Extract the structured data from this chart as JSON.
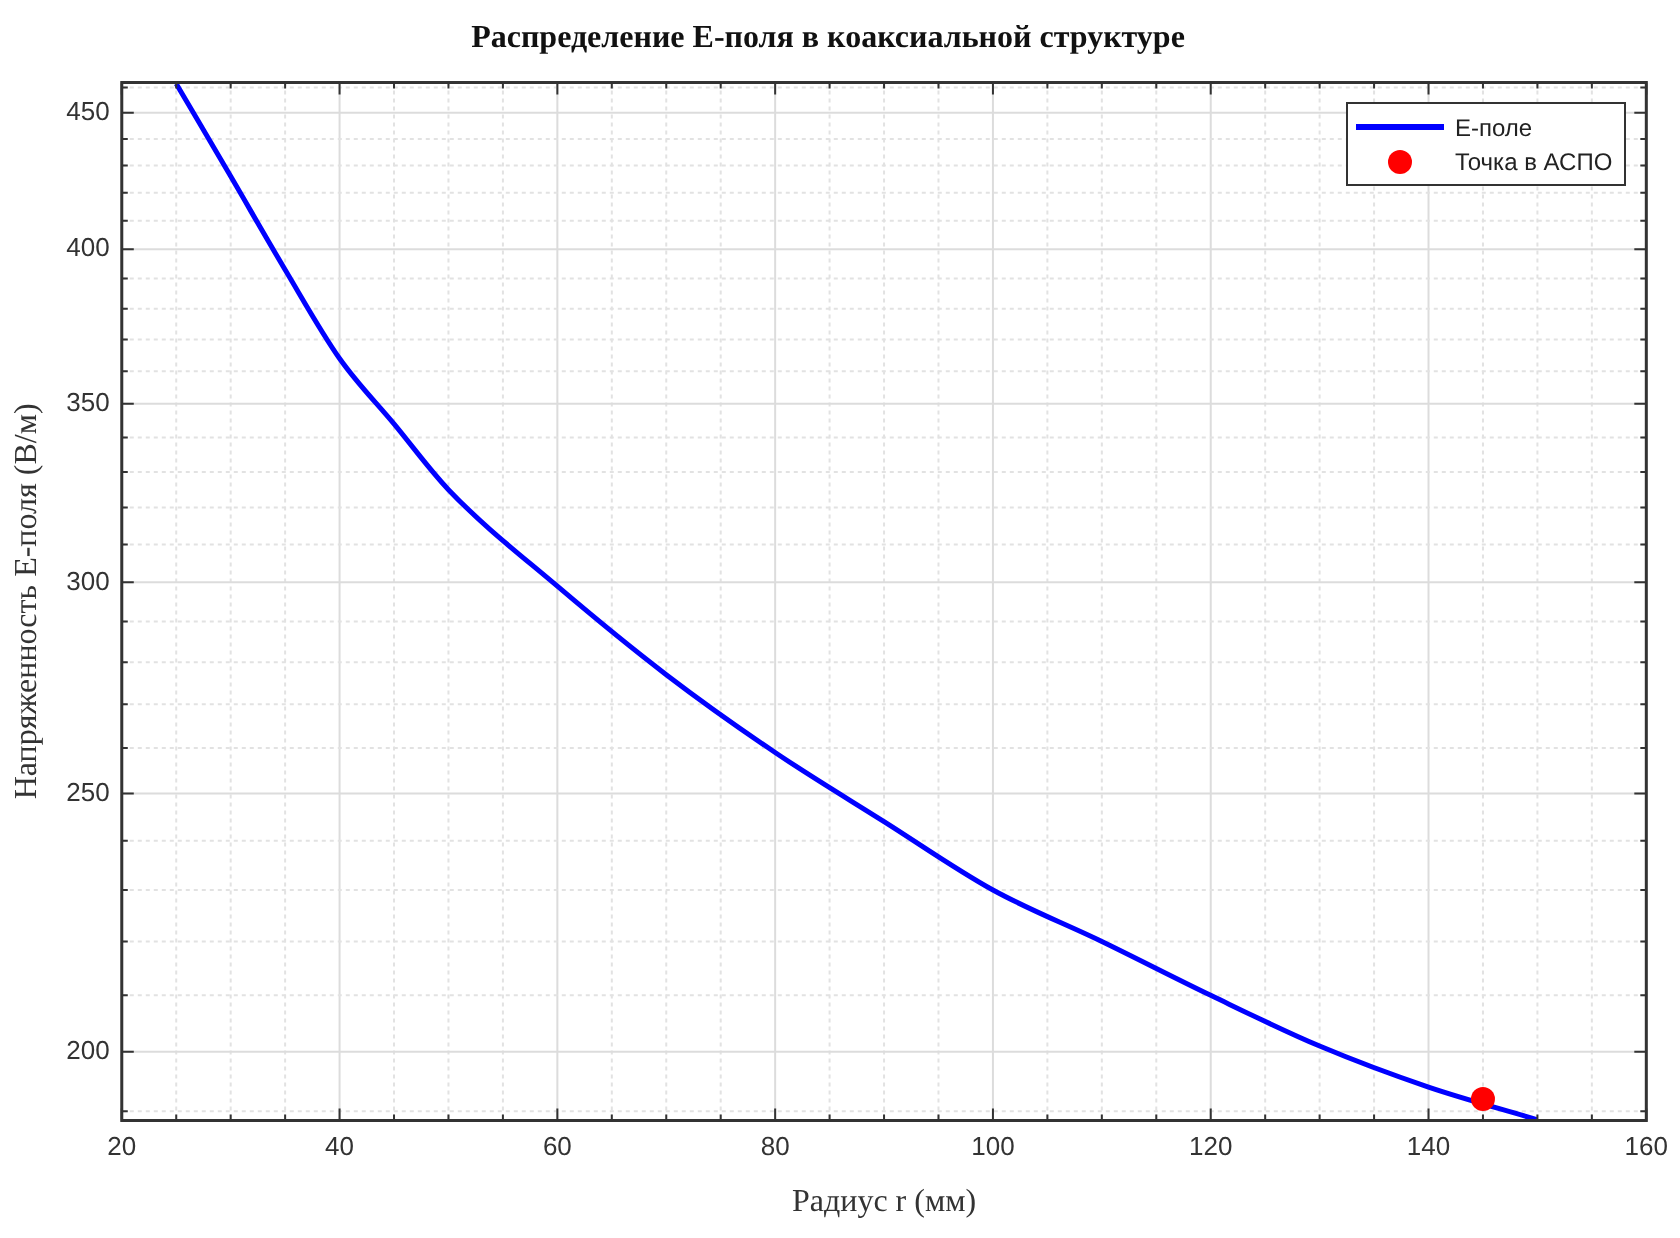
{
  "chart_data": {
    "type": "line",
    "title": "Распределение E-поля в коаксиальной структуре",
    "xlabel": "Радиус r (мм)",
    "ylabel": "Напряженность E-поля (В/м)",
    "log": "y",
    "grid": true,
    "legend": "top right",
    "xlim": [
      20,
      160
    ],
    "xticks": [
      20,
      {
        "value": 25,
        "label": null
      },
      {
        "value": 30,
        "label": null
      },
      {
        "value": 35,
        "label": null
      },
      40,
      {
        "value": 45,
        "label": null
      },
      {
        "value": 50,
        "label": null
      },
      {
        "value": 55,
        "label": null
      },
      60,
      {
        "value": 65,
        "label": null
      },
      {
        "value": 70,
        "label": null
      },
      {
        "value": 75,
        "label": null
      },
      80,
      {
        "value": 85,
        "label": null
      },
      {
        "value": 90,
        "label": null
      },
      {
        "value": 95,
        "label": null
      },
      100,
      {
        "value": 105,
        "label": null
      },
      {
        "value": 110,
        "label": null
      },
      {
        "value": 115,
        "label": null
      },
      120,
      {
        "value": 125,
        "label": null
      },
      {
        "value": 130,
        "label": null
      },
      {
        "value": 135,
        "label": null
      },
      140,
      {
        "value": 145,
        "label": null
      },
      {
        "value": 150,
        "label": null
      },
      {
        "value": 155,
        "label": null
      },
      160
    ],
    "ylim": [
      188.5,
      462
    ],
    "yticks": [
      {
        "value": 190,
        "label": null
      },
      200,
      {
        "value": 210,
        "label": null
      },
      {
        "value": 220,
        "label": null
      },
      {
        "value": 230,
        "label": null
      },
      {
        "value": 240,
        "label": null
      },
      250,
      {
        "value": 260,
        "label": null
      },
      {
        "value": 270,
        "label": null
      },
      {
        "value": 280,
        "label": null
      },
      {
        "value": 290,
        "label": null
      },
      300,
      {
        "value": 310,
        "label": null
      },
      {
        "value": 320,
        "label": null
      },
      {
        "value": 330,
        "label": null
      },
      {
        "value": 340,
        "label": null
      },
      350,
      {
        "value": 360,
        "label": null
      },
      {
        "value": 370,
        "label": null
      },
      {
        "value": 380,
        "label": null
      },
      {
        "value": 390,
        "label": null
      },
      400,
      {
        "value": 410,
        "label": null
      },
      {
        "value": 420,
        "label": null
      },
      {
        "value": 430,
        "label": null
      },
      {
        "value": 440,
        "label": null
      },
      450,
      {
        "value": 460,
        "label": null
      }
    ],
    "series": [
      {
        "name": "E-поле",
        "color": "#0000ff",
        "marker": "none",
        "line_style": "solid",
        "x": [
          25,
          30,
          35,
          40,
          45,
          50,
          60,
          70,
          80,
          90,
          100,
          110,
          120,
          130,
          140,
          150
        ],
        "values": [
          461.5,
          426,
          393,
          364,
          344,
          325,
          299,
          277,
          259,
          244,
          230,
          220,
          210,
          201,
          194,
          188.6
        ]
      },
      {
        "name": "Точка в АСПО",
        "type": "scatter",
        "color": "#ff0000",
        "marker": "circle",
        "x": [
          145
        ],
        "values": [
          192
        ]
      }
    ]
  }
}
